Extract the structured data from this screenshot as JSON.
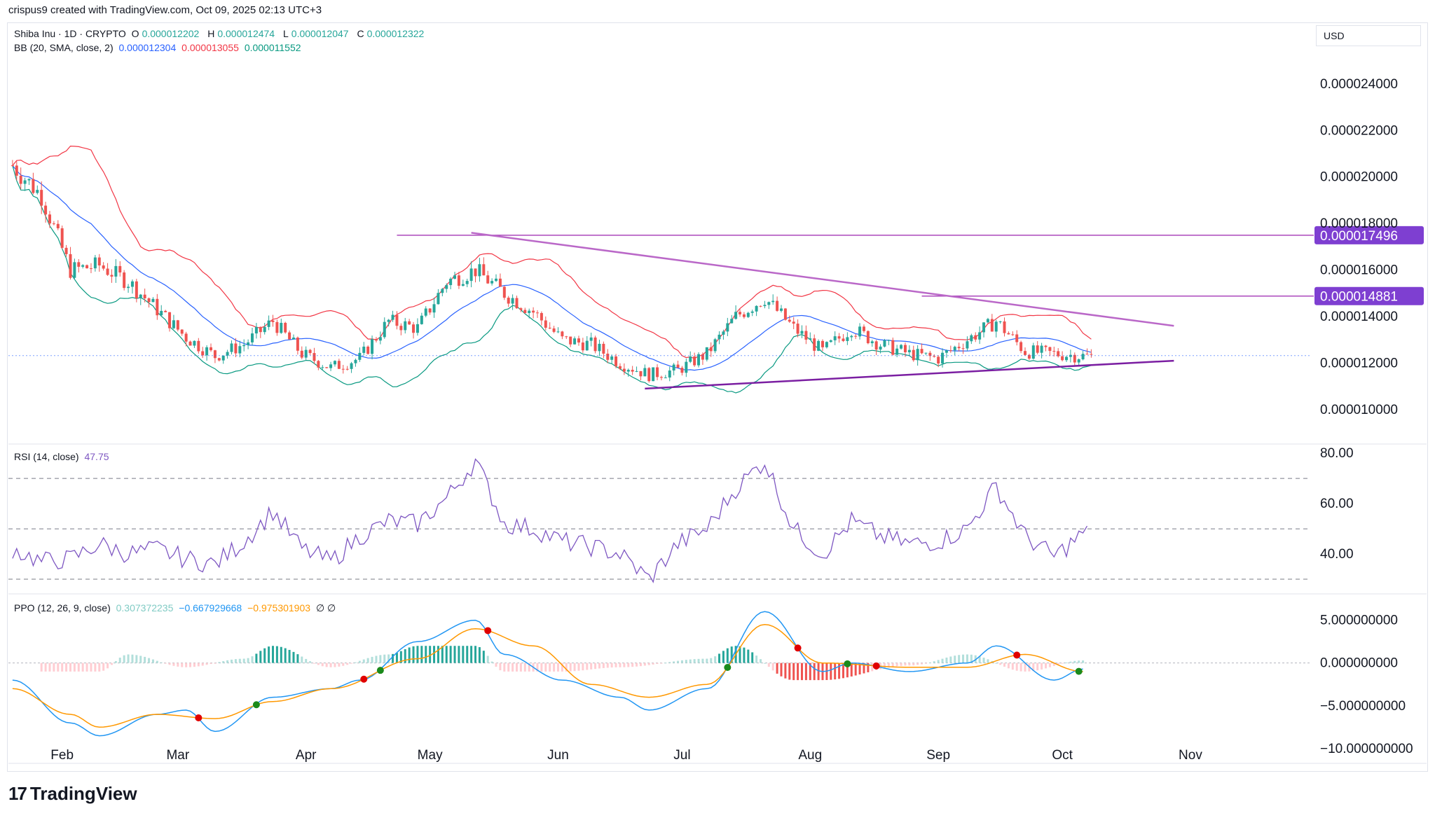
{
  "header": {
    "text": "crispus9 created with TradingView.com, Oct 09, 2025 02:13 UTC+3"
  },
  "currency": "USD",
  "legend": {
    "symbol": "Shiba Inu · 1D · CRYPTO",
    "ohlc": {
      "o_label": "O",
      "o": "0.000012202",
      "h_label": "H",
      "h": "0.000012474",
      "l_label": "L",
      "l": "0.000012047",
      "c_label": "C",
      "c": "0.000012322"
    },
    "bb": {
      "label": "BB (20, SMA, close, 2)",
      "basis": "0.000012304",
      "upper": "0.000013055",
      "lower": "0.000011552"
    },
    "rsi": {
      "label": "RSI (14, close)",
      "value": "47.75"
    },
    "ppo": {
      "label": "PPO (12, 26, 9, close)",
      "hist": "0.307372235",
      "ppo": "−0.667929668",
      "signal": "−0.975301903",
      "extra": "∅ ∅"
    }
  },
  "brand": {
    "name": "TradingView",
    "mark": "17"
  },
  "colors": {
    "up": "#26a69a",
    "down": "#ef5350",
    "bb_basis": "#2962ff",
    "bb_upper": "#f23645",
    "bb_lower": "#089981",
    "trend": "#ab47bc",
    "label_bg": "#7e3fd1",
    "rsi": "#7e57c2",
    "ppo": "#2196f3",
    "signal": "#ff9800"
  },
  "chart_data": [
    {
      "type": "candlestick",
      "title": "Shiba Inu · 1D · CRYPTO",
      "x_tick_labels": [
        "Feb",
        "Mar",
        "Apr",
        "May",
        "Jun",
        "Jul",
        "Aug",
        "Sep",
        "Oct",
        "Nov"
      ],
      "y_tick_labels": [
        "0.000024000",
        "0.000022000",
        "0.000020000",
        "0.000018000",
        "0.000016000",
        "0.000014000",
        "0.000012000",
        "0.000010000"
      ],
      "ylim": [
        8.7e-06,
        2.55e-05
      ],
      "price_labels": [
        "0.000017496",
        "0.000014881"
      ],
      "horizontal_lines": [
        1.7496e-05,
        1.4881e-05
      ],
      "trendlines": [
        {
          "name": "descending resistance",
          "from": [
            "2025-05-11",
            1.76e-05
          ],
          "to": [
            "2025-10-28",
            1.36e-05
          ]
        },
        {
          "name": "ascending support",
          "from": [
            "2025-06-22",
            1.09e-05
          ],
          "to": [
            "2025-10-28",
            1.21e-05
          ]
        }
      ],
      "close_series": [
        [
          "2025-01-20",
          2.05e-05
        ],
        [
          "2025-01-27",
          1.92e-05
        ],
        [
          "2025-02-03",
          1.6e-05
        ],
        [
          "2025-02-10",
          1.62e-05
        ],
        [
          "2025-02-17",
          1.55e-05
        ],
        [
          "2025-02-24",
          1.43e-05
        ],
        [
          "2025-03-03",
          1.31e-05
        ],
        [
          "2025-03-10",
          1.23e-05
        ],
        [
          "2025-03-17",
          1.28e-05
        ],
        [
          "2025-03-24",
          1.38e-05
        ],
        [
          "2025-03-31",
          1.24e-05
        ],
        [
          "2025-04-07",
          1.18e-05
        ],
        [
          "2025-04-14",
          1.22e-05
        ],
        [
          "2025-04-21",
          1.38e-05
        ],
        [
          "2025-04-28",
          1.35e-05
        ],
        [
          "2025-05-05",
          1.55e-05
        ],
        [
          "2025-05-12",
          1.6e-05
        ],
        [
          "2025-05-19",
          1.5e-05
        ],
        [
          "2025-05-26",
          1.42e-05
        ],
        [
          "2025-06-02",
          1.3e-05
        ],
        [
          "2025-06-09",
          1.28e-05
        ],
        [
          "2025-06-16",
          1.2e-05
        ],
        [
          "2025-06-23",
          1.15e-05
        ],
        [
          "2025-06-30",
          1.17e-05
        ],
        [
          "2025-07-07",
          1.24e-05
        ],
        [
          "2025-07-14",
          1.4e-05
        ],
        [
          "2025-07-21",
          1.48e-05
        ],
        [
          "2025-07-28",
          1.35e-05
        ],
        [
          "2025-08-04",
          1.25e-05
        ],
        [
          "2025-08-11",
          1.35e-05
        ],
        [
          "2025-08-18",
          1.28e-05
        ],
        [
          "2025-08-25",
          1.24e-05
        ],
        [
          "2025-09-01",
          1.22e-05
        ],
        [
          "2025-09-08",
          1.3e-05
        ],
        [
          "2025-09-15",
          1.38e-05
        ],
        [
          "2025-09-22",
          1.25e-05
        ],
        [
          "2025-09-29",
          1.24e-05
        ],
        [
          "2025-10-06",
          1.23e-05
        ]
      ]
    },
    {
      "type": "line",
      "title": "RSI (14, close)",
      "y_tick_labels": [
        "80.00",
        "60.00",
        "40.00"
      ],
      "bands": [
        30,
        50,
        70
      ],
      "ylim": [
        25,
        82
      ],
      "series": [
        {
          "name": "RSI",
          "values": [
            [
              "2025-01-20",
              42
            ],
            [
              "2025-01-27",
              37
            ],
            [
              "2025-02-03",
              38
            ],
            [
              "2025-02-10",
              44
            ],
            [
              "2025-02-17",
              40
            ],
            [
              "2025-02-24",
              42
            ],
            [
              "2025-03-03",
              38
            ],
            [
              "2025-03-10",
              36
            ],
            [
              "2025-03-17",
              45
            ],
            [
              "2025-03-24",
              57
            ],
            [
              "2025-03-31",
              42
            ],
            [
              "2025-04-07",
              37
            ],
            [
              "2025-04-14",
              47
            ],
            [
              "2025-04-21",
              53
            ],
            [
              "2025-04-28",
              52
            ],
            [
              "2025-05-05",
              62
            ],
            [
              "2025-05-12",
              77
            ],
            [
              "2025-05-19",
              52
            ],
            [
              "2025-05-26",
              50
            ],
            [
              "2025-06-02",
              45
            ],
            [
              "2025-06-09",
              43
            ],
            [
              "2025-06-16",
              40
            ],
            [
              "2025-06-23",
              30
            ],
            [
              "2025-06-30",
              44
            ],
            [
              "2025-07-07",
              50
            ],
            [
              "2025-07-14",
              66
            ],
            [
              "2025-07-21",
              77
            ],
            [
              "2025-07-28",
              50
            ],
            [
              "2025-08-04",
              40
            ],
            [
              "2025-08-11",
              53
            ],
            [
              "2025-08-18",
              47
            ],
            [
              "2025-08-25",
              44
            ],
            [
              "2025-09-01",
              45
            ],
            [
              "2025-09-08",
              50
            ],
            [
              "2025-09-15",
              67
            ],
            [
              "2025-09-22",
              47
            ],
            [
              "2025-09-29",
              39
            ],
            [
              "2025-10-06",
              48
            ]
          ]
        }
      ]
    },
    {
      "type": "line",
      "title": "PPO (12, 26, 9, close)",
      "y_tick_labels": [
        "5.000000000",
        "0.000000000",
        "−5.000000000",
        "−10.000000000"
      ],
      "ylim": [
        -10.5,
        7.5
      ],
      "series": [
        {
          "name": "PPO",
          "values": [
            [
              "2025-01-20",
              -2
            ],
            [
              "2025-02-03",
              -7
            ],
            [
              "2025-02-10",
              -8.5
            ],
            [
              "2025-02-24",
              -6
            ],
            [
              "2025-03-03",
              -5.5
            ],
            [
              "2025-03-10",
              -8
            ],
            [
              "2025-03-24",
              -4
            ],
            [
              "2025-04-07",
              -3
            ],
            [
              "2025-04-14",
              -2
            ],
            [
              "2025-04-28",
              2.5
            ],
            [
              "2025-05-12",
              5
            ],
            [
              "2025-05-19",
              1
            ],
            [
              "2025-06-02",
              -2
            ],
            [
              "2025-06-16",
              -4
            ],
            [
              "2025-06-23",
              -5.5
            ],
            [
              "2025-07-07",
              -3
            ],
            [
              "2025-07-21",
              6
            ],
            [
              "2025-08-04",
              -1
            ],
            [
              "2025-08-11",
              0
            ],
            [
              "2025-08-25",
              -1
            ],
            [
              "2025-09-08",
              0
            ],
            [
              "2025-09-15",
              2
            ],
            [
              "2025-09-29",
              -2
            ],
            [
              "2025-10-06",
              -0.7
            ]
          ]
        },
        {
          "name": "Signal",
          "values": [
            [
              "2025-01-20",
              -3
            ],
            [
              "2025-02-03",
              -6
            ],
            [
              "2025-02-10",
              -7.5
            ],
            [
              "2025-02-24",
              -6
            ],
            [
              "2025-03-10",
              -6.5
            ],
            [
              "2025-03-24",
              -4.5
            ],
            [
              "2025-04-07",
              -3
            ],
            [
              "2025-04-28",
              0.5
            ],
            [
              "2025-05-12",
              4
            ],
            [
              "2025-05-26",
              2
            ],
            [
              "2025-06-09",
              -2.5
            ],
            [
              "2025-06-23",
              -4
            ],
            [
              "2025-07-07",
              -2.5
            ],
            [
              "2025-07-21",
              4.5
            ],
            [
              "2025-08-04",
              0
            ],
            [
              "2025-08-25",
              -0.5
            ],
            [
              "2025-09-08",
              -0.5
            ],
            [
              "2025-09-22",
              1
            ],
            [
              "2025-10-06",
              -1
            ]
          ]
        },
        {
          "name": "Histogram",
          "values": [
            [
              "2025-01-27",
              -1
            ],
            [
              "2025-02-10",
              -1
            ],
            [
              "2025-02-17",
              1
            ],
            [
              "2025-03-03",
              -0.5
            ],
            [
              "2025-03-17",
              0.5
            ],
            [
              "2025-03-24",
              2
            ],
            [
              "2025-04-07",
              -0.5
            ],
            [
              "2025-04-21",
              1
            ],
            [
              "2025-04-28",
              2
            ],
            [
              "2025-05-12",
              2
            ],
            [
              "2025-05-19",
              -1
            ],
            [
              "2025-06-02",
              -1
            ],
            [
              "2025-06-16",
              -0.5
            ],
            [
              "2025-07-07",
              0.5
            ],
            [
              "2025-07-14",
              2
            ],
            [
              "2025-07-28",
              -2
            ],
            [
              "2025-08-04",
              -2
            ],
            [
              "2025-08-25",
              -0.3
            ],
            [
              "2025-09-08",
              1
            ],
            [
              "2025-09-22",
              -1
            ],
            [
              "2025-10-06",
              0.3
            ]
          ]
        }
      ]
    }
  ]
}
